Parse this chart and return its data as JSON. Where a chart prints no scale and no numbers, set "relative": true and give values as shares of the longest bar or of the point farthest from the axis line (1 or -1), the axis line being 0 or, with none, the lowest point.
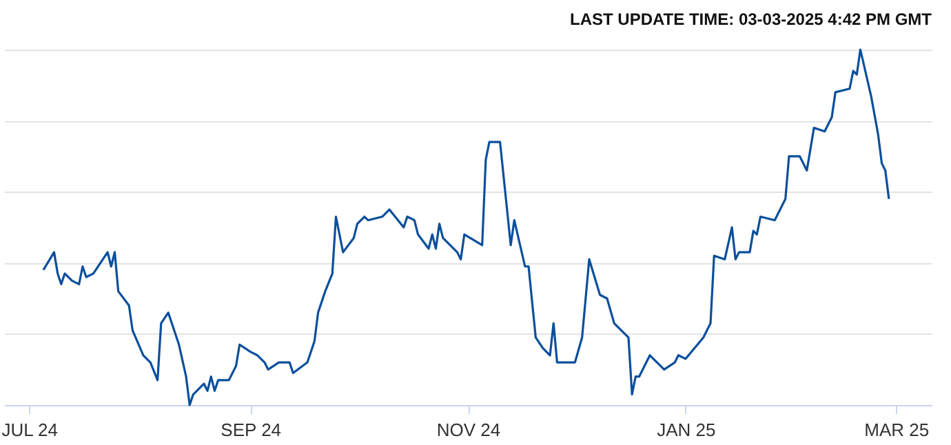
{
  "chart_data": {
    "type": "line",
    "relative": true,
    "grid": "y",
    "line_style": "solid",
    "marker": "none",
    "annotations": [
      "LAST UPDATE TIME: 03-03-2025 4:42 PM GMT"
    ],
    "xlim": [
      "2024-06-24",
      "2025-03-11"
    ],
    "xticks": [
      {
        "value": "2024-07-01",
        "label": "JUL 24"
      },
      {
        "value": "2024-09-01",
        "label": "SEP 24"
      },
      {
        "value": "2024-11-01",
        "label": "NOV 24"
      },
      {
        "value": "2025-01-01",
        "label": "JAN 25"
      },
      {
        "value": "2025-03-01",
        "label": "MAR 25"
      }
    ],
    "x": [
      "2024-07-05",
      "2024-07-08",
      "2024-07-09",
      "2024-07-10",
      "2024-07-11",
      "2024-07-13",
      "2024-07-15",
      "2024-07-16",
      "2024-07-17",
      "2024-07-19",
      "2024-07-23",
      "2024-07-24",
      "2024-07-25",
      "2024-07-26",
      "2024-07-29",
      "2024-07-30",
      "2024-08-02",
      "2024-08-04",
      "2024-08-06",
      "2024-08-07",
      "2024-08-09",
      "2024-08-12",
      "2024-08-14",
      "2024-08-15",
      "2024-08-16",
      "2024-08-19",
      "2024-08-20",
      "2024-08-21",
      "2024-08-22",
      "2024-08-23",
      "2024-08-26",
      "2024-08-28",
      "2024-08-29",
      "2024-09-01",
      "2024-09-03",
      "2024-09-05",
      "2024-09-06",
      "2024-09-09",
      "2024-09-12",
      "2024-09-13",
      "2024-09-17",
      "2024-09-19",
      "2024-09-20",
      "2024-09-22",
      "2024-09-24",
      "2024-09-25",
      "2024-09-27",
      "2024-09-30",
      "2024-10-01",
      "2024-10-03",
      "2024-10-04",
      "2024-10-08",
      "2024-10-10",
      "2024-10-14",
      "2024-10-15",
      "2024-10-17",
      "2024-10-18",
      "2024-10-21",
      "2024-10-22",
      "2024-10-23",
      "2024-10-24",
      "2024-10-25",
      "2024-10-29",
      "2024-10-30",
      "2024-10-31",
      "2024-11-05",
      "2024-11-06",
      "2024-11-07",
      "2024-11-10",
      "2024-11-13",
      "2024-11-14",
      "2024-11-17",
      "2024-11-18",
      "2024-11-20",
      "2024-11-22",
      "2024-11-24",
      "2024-11-25",
      "2024-11-26",
      "2024-12-01",
      "2024-12-03",
      "2024-12-05",
      "2024-12-08",
      "2024-12-10",
      "2024-12-12",
      "2024-12-16",
      "2024-12-17",
      "2024-12-18",
      "2024-12-19",
      "2024-12-22",
      "2024-12-26",
      "2024-12-29",
      "2024-12-30",
      "2025-01-01",
      "2025-01-06",
      "2025-01-08",
      "2025-01-09",
      "2025-01-12",
      "2025-01-14",
      "2025-01-15",
      "2025-01-16",
      "2025-01-19",
      "2025-01-20",
      "2025-01-21",
      "2025-01-22",
      "2025-01-26",
      "2025-01-29",
      "2025-01-30",
      "2025-02-02",
      "2025-02-04",
      "2025-02-06",
      "2025-02-09",
      "2025-02-11",
      "2025-02-12",
      "2025-02-16",
      "2025-02-17",
      "2025-02-18",
      "2025-02-19",
      "2025-02-22",
      "2025-02-24",
      "2025-02-25",
      "2025-02-26",
      "2025-02-27"
    ],
    "series": [
      {
        "color": "#0b4f9c",
        "values": [
          0.38,
          0.43,
          0.37,
          0.34,
          0.37,
          0.35,
          0.34,
          0.39,
          0.36,
          0.37,
          0.43,
          0.39,
          0.43,
          0.32,
          0.28,
          0.21,
          0.14,
          0.12,
          0.07,
          0.23,
          0.26,
          0.17,
          0.08,
          0,
          0.03,
          0.06,
          0.04,
          0.08,
          0.04,
          0.07,
          0.07,
          0.11,
          0.17,
          0.15,
          0.14,
          0.12,
          0.1,
          0.12,
          0.12,
          0.09,
          0.12,
          0.18,
          0.26,
          0.32,
          0.37,
          0.53,
          0.43,
          0.47,
          0.51,
          0.53,
          0.52,
          0.53,
          0.55,
          0.5,
          0.53,
          0.52,
          0.48,
          0.44,
          0.48,
          0.44,
          0.51,
          0.47,
          0.43,
          0.41,
          0.48,
          0.45,
          0.69,
          0.74,
          0.74,
          0.45,
          0.52,
          0.39,
          0.39,
          0.19,
          0.16,
          0.14,
          0.23,
          0.12,
          0.12,
          0.19,
          0.41,
          0.31,
          0.3,
          0.23,
          0.19,
          0.03,
          0.08,
          0.08,
          0.14,
          0.1,
          0.12,
          0.14,
          0.13,
          0.19,
          0.23,
          0.42,
          0.41,
          0.5,
          0.41,
          0.43,
          0.43,
          0.49,
          0.48,
          0.53,
          0.52,
          0.58,
          0.7,
          0.7,
          0.66,
          0.78,
          0.77,
          0.81,
          0.88,
          0.89,
          0.94,
          0.93,
          1,
          0.87,
          0.76,
          0.68,
          0.66,
          0.58
        ]
      }
    ]
  }
}
